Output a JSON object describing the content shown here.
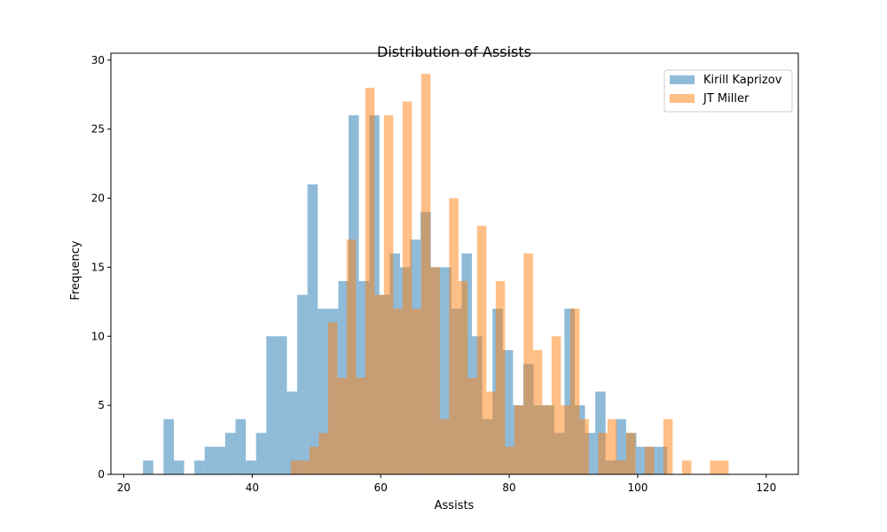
{
  "chart_data": {
    "type": "histogram",
    "title": "Distribution of Assists",
    "xlabel": "Assists",
    "ylabel": "Frequency",
    "xlim": [
      18,
      125
    ],
    "ylim": [
      0,
      30.5
    ],
    "xticks": [
      20,
      40,
      60,
      80,
      100,
      120
    ],
    "yticks": [
      0,
      5,
      10,
      15,
      20,
      25,
      30
    ],
    "legend_position": "top-right",
    "grid": false,
    "series": [
      {
        "name": "Kirill Kaprizov",
        "color": "#1f77b4",
        "opacity": 0.5,
        "bin_start": 23,
        "bin_width": 1.6,
        "counts": [
          1,
          0,
          4,
          1,
          0,
          1,
          2,
          2,
          3,
          4,
          1,
          3,
          10,
          10,
          6,
          13,
          21,
          12,
          12,
          14,
          26,
          14,
          26,
          13,
          16,
          15,
          17,
          19,
          15,
          15,
          12,
          16,
          10,
          4,
          12,
          9,
          5,
          8,
          5,
          5,
          3,
          12,
          5,
          3,
          6,
          1,
          4,
          3,
          2,
          2,
          2
        ]
      },
      {
        "name": "JT Miller",
        "color": "#ff7f0e",
        "opacity": 0.5,
        "bin_start": 46,
        "bin_width": 1.45,
        "counts": [
          1,
          1,
          2,
          3,
          11,
          7,
          17,
          7,
          28,
          13,
          26,
          12,
          27,
          12,
          29,
          15,
          4,
          20,
          14,
          7,
          18,
          6,
          14,
          2,
          5,
          16,
          9,
          5,
          10,
          5,
          12,
          4,
          0,
          3,
          4,
          1,
          3,
          0,
          2,
          0,
          4,
          0,
          1,
          0,
          0,
          1,
          1
        ]
      }
    ]
  }
}
